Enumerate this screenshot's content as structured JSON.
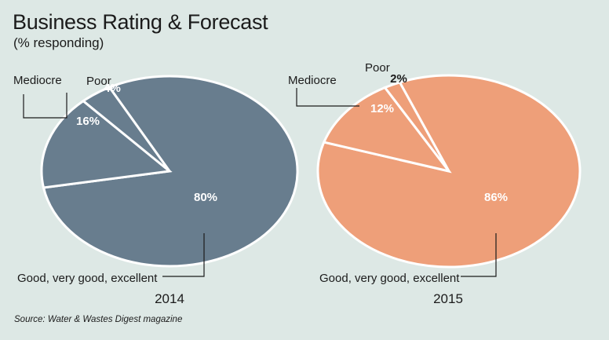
{
  "title": "Business Rating & Forecast",
  "subtitle": "(% responding)",
  "source": "Source: Water & Wastes Digest magazine",
  "colors": {
    "pie_2014": "#687d8e",
    "pie_2015": "#ee9f79",
    "background": "#dde8e5",
    "slice_border": "#ffffff"
  },
  "chart_data": [
    {
      "type": "pie",
      "title": "2014",
      "slices": [
        {
          "label": "Good, very good, excellent",
          "value": 80,
          "value_label": "80%"
        },
        {
          "label": "Mediocre",
          "value": 16,
          "value_label": "16%"
        },
        {
          "label": "Poor",
          "value": 4,
          "value_label": "4%"
        }
      ]
    },
    {
      "type": "pie",
      "title": "2015",
      "slices": [
        {
          "label": "Good, very good, excellent",
          "value": 86,
          "value_label": "86%"
        },
        {
          "label": "Mediocre",
          "value": 12,
          "value_label": "12%"
        },
        {
          "label": "Poor",
          "value": 2,
          "value_label": "2%"
        }
      ]
    }
  ]
}
